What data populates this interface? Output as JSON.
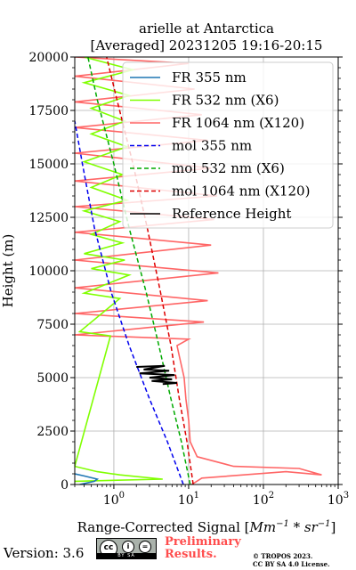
{
  "chart_data": {
    "type": "line",
    "title_line1": "arielle at Antarctica",
    "title_line2": "[Averaged] 20231205 19:16-20:15",
    "ylabel": "Height (m)",
    "xlabel_main": "Range-Corrected Signal [",
    "xlabel_unit_a": "Mm",
    "xlabel_unit_a_exp": "−1",
    "xlabel_mid": " * ",
    "xlabel_unit_b": "sr",
    "xlabel_unit_b_exp": "−1",
    "xlabel_end": "]",
    "xscale": "log",
    "xlim": [
      0.3,
      1000
    ],
    "ylim": [
      0,
      20000
    ],
    "grid": true,
    "legend_placement": "upper-right",
    "x_ticks": [
      {
        "base": "10",
        "exp": "0",
        "value": 1
      },
      {
        "base": "10",
        "exp": "1",
        "value": 10
      },
      {
        "base": "10",
        "exp": "2",
        "value": 100
      },
      {
        "base": "10",
        "exp": "3",
        "value": 1000
      }
    ],
    "y_ticks": [
      {
        "label": "0",
        "value": 0
      },
      {
        "label": "2500",
        "value": 2500
      },
      {
        "label": "5000",
        "value": 5000
      },
      {
        "label": "7500",
        "value": 7500
      },
      {
        "label": "10000",
        "value": 10000
      },
      {
        "label": "12500",
        "value": 12500
      },
      {
        "label": "15000",
        "value": 15000
      },
      {
        "label": "17500",
        "value": 17500
      },
      {
        "label": "20000",
        "value": 20000
      }
    ],
    "series": [
      {
        "name": "FR 355 nm",
        "color": "#1f77b4",
        "style": "solid",
        "points": [
          [
            0.35,
            0
          ],
          [
            0.55,
            150
          ],
          [
            0.6,
            250
          ],
          [
            0.4,
            400
          ],
          [
            0.3,
            500
          ]
        ]
      },
      {
        "name": "FR 532 nm (X6)",
        "color": "#80ff00",
        "style": "solid",
        "points": [
          [
            0.3,
            150
          ],
          [
            4.5,
            250
          ],
          [
            1.2,
            450
          ],
          [
            0.6,
            600
          ],
          [
            0.3,
            850
          ],
          [
            0.9,
            6950
          ],
          [
            0.35,
            7150
          ],
          [
            1.2,
            8700
          ],
          [
            0.4,
            8950
          ],
          [
            1.6,
            9800
          ],
          [
            0.5,
            10100
          ],
          [
            1.4,
            10500
          ],
          [
            0.4,
            10800
          ],
          [
            1.3,
            11300
          ],
          [
            0.5,
            11700
          ],
          [
            1.2,
            12300
          ],
          [
            0.4,
            12800
          ],
          [
            1.5,
            13300
          ],
          [
            0.5,
            13900
          ],
          [
            1.3,
            14500
          ],
          [
            0.4,
            15100
          ],
          [
            1.5,
            15800
          ],
          [
            0.5,
            16400
          ],
          [
            1.4,
            17000
          ],
          [
            0.5,
            17600
          ],
          [
            1.6,
            18200
          ],
          [
            0.4,
            18800
          ],
          [
            1.8,
            19400
          ],
          [
            0.4,
            20000
          ]
        ]
      },
      {
        "name": "FR 1064 nm (X120)",
        "color": "#ff6666",
        "style": "solid",
        "points": [
          [
            11,
            0
          ],
          [
            15,
            300
          ],
          [
            200,
            600
          ],
          [
            600,
            450
          ],
          [
            300,
            750
          ],
          [
            40,
            850
          ],
          [
            13,
            1300
          ],
          [
            10.5,
            2000
          ],
          [
            10,
            3000
          ],
          [
            9.2,
            4000
          ],
          [
            8.7,
            5000
          ],
          [
            7.5,
            6000
          ],
          [
            7,
            6500
          ],
          [
            10,
            6800
          ],
          [
            0.3,
            7000
          ],
          [
            16,
            7600
          ],
          [
            0.3,
            8000
          ],
          [
            18,
            8600
          ],
          [
            0.3,
            9200
          ],
          [
            25,
            9900
          ],
          [
            0.3,
            10500
          ],
          [
            20,
            11200
          ],
          [
            0.3,
            11800
          ],
          [
            22,
            12400
          ],
          [
            0.3,
            13000
          ],
          [
            24,
            13500
          ],
          [
            0.3,
            14200
          ],
          [
            20,
            14800
          ],
          [
            0.3,
            15500
          ],
          [
            18,
            16100
          ],
          [
            0.3,
            16700
          ],
          [
            15,
            17300
          ],
          [
            0.3,
            17900
          ],
          [
            12,
            18500
          ],
          [
            0.3,
            19100
          ],
          [
            10,
            19700
          ],
          [
            0.3,
            20000
          ]
        ]
      },
      {
        "name": "mol 355 nm",
        "color": "#0000ee",
        "style": "dashed",
        "points": [
          [
            8.5,
            0
          ],
          [
            5.2,
            2000
          ],
          [
            3.0,
            4000
          ],
          [
            1.6,
            6500
          ],
          [
            0.92,
            9000
          ],
          [
            0.55,
            12000
          ],
          [
            0.38,
            15000
          ],
          [
            0.3,
            17000
          ]
        ]
      },
      {
        "name": "mol 532 nm (X6)",
        "color": "#00aa00",
        "style": "dashed",
        "points": [
          [
            10.5,
            0
          ],
          [
            8.0,
            2000
          ],
          [
            5.8,
            4000
          ],
          [
            4.0,
            6500
          ],
          [
            2.7,
            9000
          ],
          [
            1.6,
            12000
          ],
          [
            1.0,
            15000
          ],
          [
            0.6,
            18000
          ],
          [
            0.45,
            20000
          ]
        ]
      },
      {
        "name": "mol 1064 nm (X120)",
        "color": "#dd0000",
        "style": "dashed",
        "points": [
          [
            11.5,
            0
          ],
          [
            9.5,
            2000
          ],
          [
            7.5,
            4000
          ],
          [
            5.8,
            6500
          ],
          [
            4.2,
            9000
          ],
          [
            2.8,
            12000
          ],
          [
            1.8,
            15000
          ],
          [
            1.1,
            18000
          ],
          [
            0.8,
            20000
          ]
        ]
      },
      {
        "name": "Reference Height",
        "color": "#000000",
        "style": "solid",
        "points": [
          [
            2,
            5500
          ],
          [
            4.8,
            5550
          ],
          [
            2.5,
            5380
          ],
          [
            5.5,
            5320
          ],
          [
            2.2,
            5200
          ],
          [
            6.5,
            5120
          ],
          [
            3,
            5000
          ],
          [
            6,
            4920
          ],
          [
            3.2,
            4840
          ],
          [
            7,
            4750
          ],
          [
            4.5,
            4700
          ]
        ]
      }
    ]
  },
  "footer": {
    "version": "Version: 3.6",
    "cc_letters": [
      "cc",
      "i",
      "=",
      "BY",
      "SA"
    ],
    "preliminary_line1": "Preliminary",
    "preliminary_line2": "Results.",
    "copyright_line1": "© TROPOS 2023.",
    "copyright_line2": "CC BY SA 4.0 License."
  }
}
